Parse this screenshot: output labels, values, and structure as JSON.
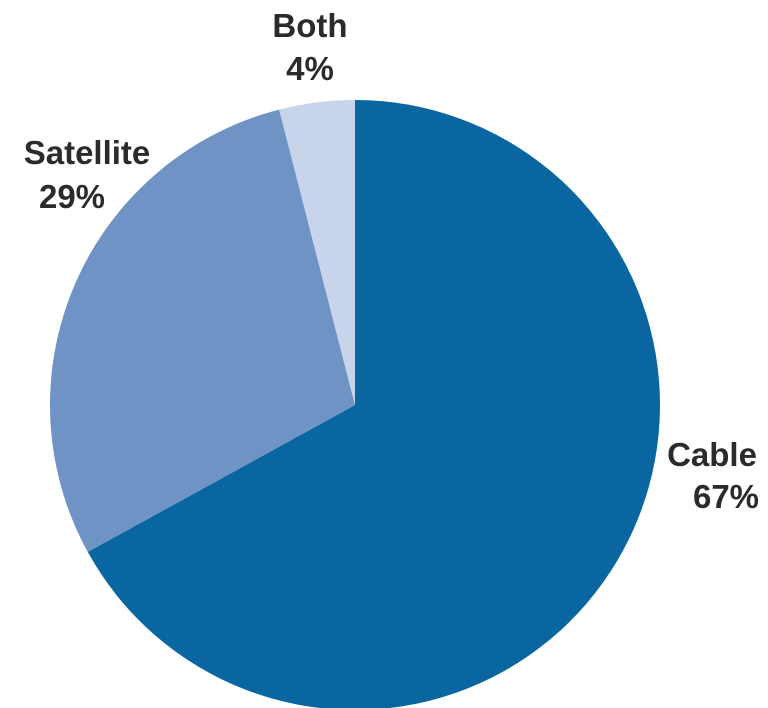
{
  "chart_data": {
    "type": "pie",
    "slices": [
      {
        "label": "Cable",
        "value": 67,
        "value_label": "67%",
        "color": "#0a66a0"
      },
      {
        "label": "Satellite",
        "value": 29,
        "value_label": "29%",
        "color": "#6e93c4"
      },
      {
        "label": "Both",
        "value": 4,
        "value_label": "4%",
        "color": "#c7d4e9"
      }
    ],
    "start": "12 o'clock",
    "direction": "clockwise",
    "legend": "none"
  }
}
